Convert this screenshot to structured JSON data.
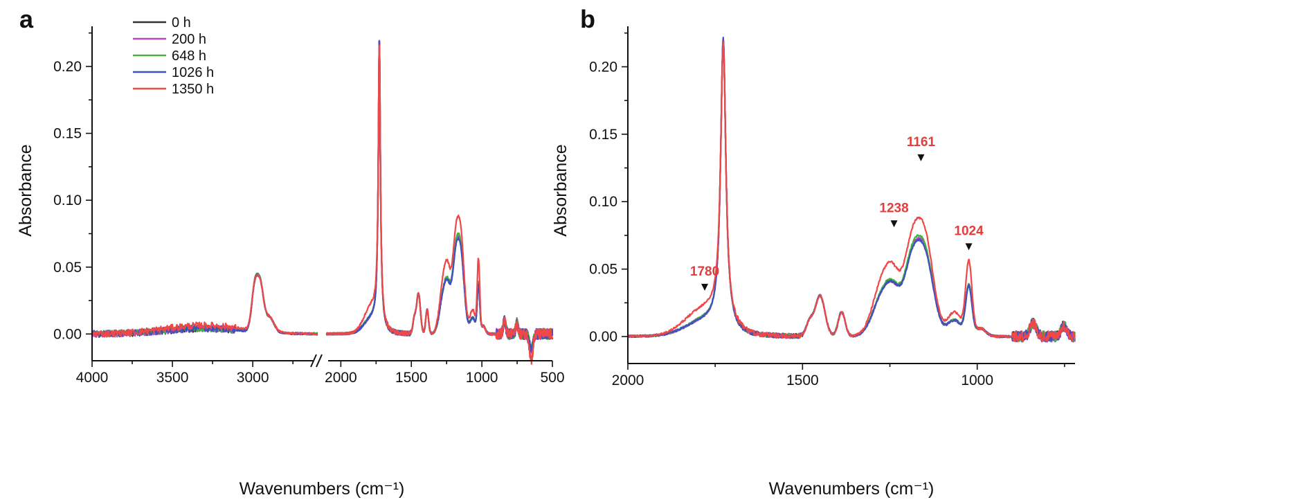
{
  "chart_data": [
    {
      "panel": "a",
      "type": "line",
      "xlabel": "Wavenumbers (cm⁻¹)",
      "ylabel": "Absorbance",
      "xlim_left": [
        4000,
        2600
      ],
      "xlim_right": [
        2100,
        500
      ],
      "axis_break": true,
      "ylim": [
        -0.02,
        0.23
      ],
      "xticks_left": [
        4000,
        3500,
        3000
      ],
      "xticks_right": [
        2000,
        1500,
        1000,
        500
      ],
      "yticks": [
        0.0,
        0.05,
        0.1,
        0.15,
        0.2
      ],
      "ytick_labels": [
        "0.00",
        "0.05",
        "0.10",
        "0.15",
        "0.20"
      ],
      "legend": {
        "position": "top-left",
        "entries": [
          "0 h",
          "200 h",
          "648 h",
          "1026 h",
          "1350 h"
        ]
      },
      "series": [
        {
          "name": "0 h",
          "color": "#333333",
          "peak_scale": {
            "carbonyl": 1.0,
            "band1238": 1.0,
            "band1161": 1.0,
            "band1024": 1.0,
            "band1780": 1.0,
            "ch": 1.0
          }
        },
        {
          "name": "200 h",
          "color": "#b04bc8",
          "peak_scale": {
            "carbonyl": 1.0,
            "band1238": 1.0,
            "band1161": 1.01,
            "band1024": 1.0,
            "band1780": 1.0,
            "ch": 1.0
          }
        },
        {
          "name": "648 h",
          "color": "#44b044",
          "peak_scale": {
            "carbonyl": 0.99,
            "band1238": 1.04,
            "band1161": 1.04,
            "band1024": 1.02,
            "band1780": 1.05,
            "ch": 1.0
          }
        },
        {
          "name": "1026 h",
          "color": "#4050c0",
          "peak_scale": {
            "carbonyl": 1.0,
            "band1238": 1.0,
            "band1161": 0.99,
            "band1024": 1.0,
            "band1780": 1.0,
            "ch": 0.98
          }
        },
        {
          "name": "1350 h",
          "color": "#ee4848",
          "peak_scale": {
            "carbonyl": 0.96,
            "band1238": 1.35,
            "band1161": 1.22,
            "band1024": 1.5,
            "band1780": 1.9,
            "ch": 0.95
          }
        }
      ]
    },
    {
      "panel": "b",
      "type": "line",
      "xlabel": "Wavenumbers (cm⁻¹)",
      "ylabel": "Absorbance",
      "xlim": [
        2000,
        720
      ],
      "ylim": [
        -0.02,
        0.23
      ],
      "xticks": [
        2000,
        1500,
        1000
      ],
      "yticks": [
        0.0,
        0.05,
        0.1,
        0.15,
        0.2
      ],
      "ytick_labels": [
        "0.00",
        "0.05",
        "0.10",
        "0.15",
        "0.20"
      ],
      "annotations": [
        {
          "label": "1780",
          "x": 1780,
          "y": 0.035,
          "color": "#e23c3c"
        },
        {
          "label": "1238",
          "x": 1238,
          "y": 0.082,
          "color": "#e23c3c"
        },
        {
          "label": "1161",
          "x": 1161,
          "y": 0.131,
          "color": "#e23c3c"
        },
        {
          "label": "1024",
          "x": 1024,
          "y": 0.065,
          "color": "#e23c3c"
        }
      ],
      "series": [
        {
          "name": "0 h",
          "color": "#333333"
        },
        {
          "name": "200 h",
          "color": "#b04bc8"
        },
        {
          "name": "648 h",
          "color": "#44b044"
        },
        {
          "name": "1026 h",
          "color": "#4050c0"
        },
        {
          "name": "1350 h",
          "color": "#ee4848"
        }
      ]
    }
  ]
}
